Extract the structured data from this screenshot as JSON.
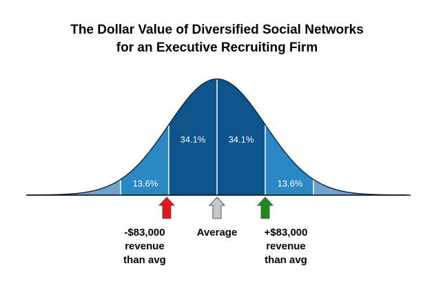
{
  "title": [
    "The Dollar Value of Diversified Social Networks",
    "for an Executive Recruiting Firm"
  ],
  "regions": {
    "left_outer": "13.6%",
    "left_inner": "34.1%",
    "right_inner": "34.1%",
    "right_outer": "13.6%"
  },
  "markers": [
    {
      "lines": [
        "-$83,000",
        "revenue",
        "than avg"
      ]
    },
    {
      "lines": [
        "Average"
      ]
    },
    {
      "lines": [
        "+$83,000",
        "revenue",
        "than avg"
      ]
    }
  ]
}
